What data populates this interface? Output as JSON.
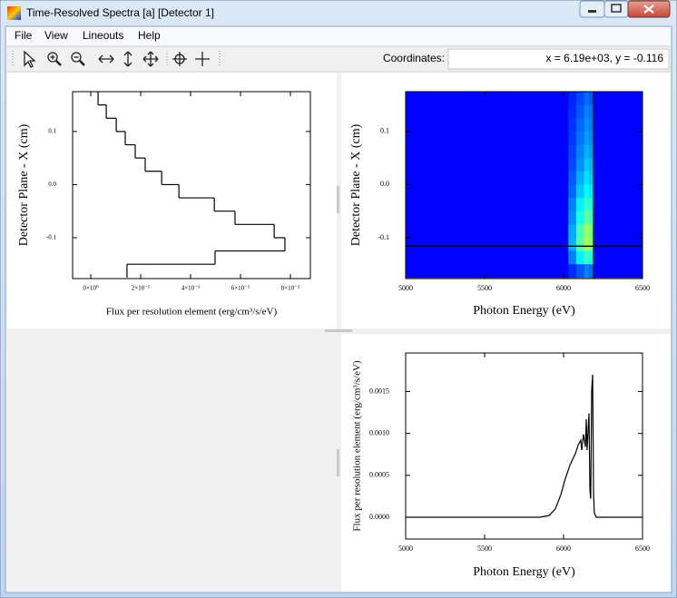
{
  "window": {
    "title": "Time-Resolved Spectra [a] [Detector 1]"
  },
  "menu": [
    "File",
    "View",
    "Lineouts",
    "Help"
  ],
  "toolbar": {
    "coordinates_label": "Coordinates:",
    "coordinates_value": "x = 6.19e+03, y = -0.116"
  },
  "chart_data": [
    {
      "type": "step",
      "xlabel": "Flux per resolution element (erg/cm³/s/eV)",
      "ylabel": "Detector Plane - X (cm)",
      "ybins": [
        0.175,
        0.15,
        0.125,
        0.1,
        0.075,
        0.05,
        0.025,
        0,
        -0.025,
        -0.05,
        -0.075,
        -0.1,
        -0.125,
        -0.15,
        -0.175
      ],
      "values": [
        2.9e-06,
        6.2e-06,
        1.02e-05,
        1.38e-05,
        1.78e-05,
        2.18e-05,
        2.84e-05,
        3.53e-05,
        4.95e-05,
        5.78e-05,
        7.35e-05,
        7.78e-05,
        4.98e-05,
        1.45e-05
      ],
      "color": "#000000",
      "xlim": [
        -7.3e-06,
        8.8e-05
      ],
      "ylim": [
        -0.177,
        0.175
      ],
      "xticks": [
        {
          "value": 0,
          "label": "0×10⁰"
        },
        {
          "value": 2e-05,
          "label": "2×10⁻⁵"
        },
        {
          "value": 4e-05,
          "label": "4×10⁻⁵"
        },
        {
          "value": 6e-05,
          "label": "6×10⁻⁵"
        },
        {
          "value": 8e-05,
          "label": "8×10⁻⁵"
        }
      ],
      "yticks": [
        0.1,
        {
          "value": 0,
          "label": "0.0"
        },
        -0.1
      ]
    },
    {
      "type": "heatmap",
      "xlabel": "Photon Energy (eV)",
      "ylabel": "Detector Plane - X (cm)",
      "xbins": [
        5000,
        6030,
        6080,
        6130,
        6160,
        6195,
        6500
      ],
      "ybins": [
        0.175,
        0.15,
        0.125,
        0.1,
        0.075,
        0.05,
        0.025,
        0,
        -0.025,
        -0.05,
        -0.075,
        -0.1,
        -0.125,
        -0.15,
        -0.175
      ],
      "z": [
        [
          0,
          0.05,
          0.1,
          0.15,
          0.12,
          0
        ],
        [
          0,
          0.06,
          0.12,
          0.18,
          0.15,
          0
        ],
        [
          0,
          0.07,
          0.14,
          0.2,
          0.17,
          0
        ],
        [
          0,
          0.08,
          0.16,
          0.22,
          0.19,
          0
        ],
        [
          0,
          0.09,
          0.18,
          0.25,
          0.22,
          0
        ],
        [
          0,
          0.1,
          0.2,
          0.28,
          0.25,
          0
        ],
        [
          0,
          0.12,
          0.24,
          0.32,
          0.28,
          0
        ],
        [
          0,
          0.14,
          0.28,
          0.36,
          0.32,
          0
        ],
        [
          0,
          0.18,
          0.34,
          0.44,
          0.4,
          0
        ],
        [
          0,
          0.2,
          0.38,
          0.5,
          0.45,
          0
        ],
        [
          0,
          0.24,
          0.45,
          0.58,
          0.52,
          0
        ],
        [
          0,
          0.25,
          0.47,
          0.6,
          0.55,
          0
        ],
        [
          0,
          0.18,
          0.34,
          0.44,
          0.4,
          0
        ],
        [
          0,
          0.06,
          0.12,
          0.18,
          0.15,
          0
        ]
      ],
      "zlim": [
        0,
        1
      ],
      "colormap": "jet",
      "crosshair": {
        "x": 6190,
        "y": -0.116
      },
      "crosshair_color": "#000000",
      "xlim": [
        5000,
        6500
      ],
      "ylim": [
        -0.177,
        0.175
      ],
      "xticks": [
        5000,
        5500,
        6000,
        6500
      ],
      "yticks": [
        0.1,
        {
          "value": 0,
          "label": "0.0"
        },
        -0.1
      ]
    },
    {
      "type": "line",
      "xlabel": "Photon Energy (eV)",
      "ylabel": "Flux per resolution element (erg/cm³/s/eV)",
      "x": [
        5000,
        5850,
        5908,
        5948,
        5983,
        6006,
        6040,
        6075,
        6092,
        6109,
        6115,
        6126,
        6138,
        6144,
        6149,
        6161,
        6167,
        6172,
        6178,
        6184,
        6190,
        6195,
        6207,
        6500
      ],
      "values": [
        0,
        0,
        2e-05,
        0.0001,
        0.00027,
        0.00043,
        0.00062,
        0.00076,
        0.00086,
        0.00092,
        0.0008,
        0.00099,
        0.00084,
        0.00117,
        0.0008,
        0.00124,
        0.00032,
        0.00022,
        0.00151,
        0.0017,
        0.00027,
        5e-05,
        0,
        0
      ],
      "color": "#000000",
      "xlim": [
        5000,
        6500
      ],
      "ylim": [
        -0.00026,
        0.00196
      ],
      "xticks": [
        5000,
        5500,
        6000,
        6500
      ],
      "yticks": [
        {
          "value": 0,
          "label": "0.0000"
        },
        0.0005,
        {
          "value": 0.001,
          "label": "0.0010"
        },
        0.0015
      ]
    }
  ]
}
